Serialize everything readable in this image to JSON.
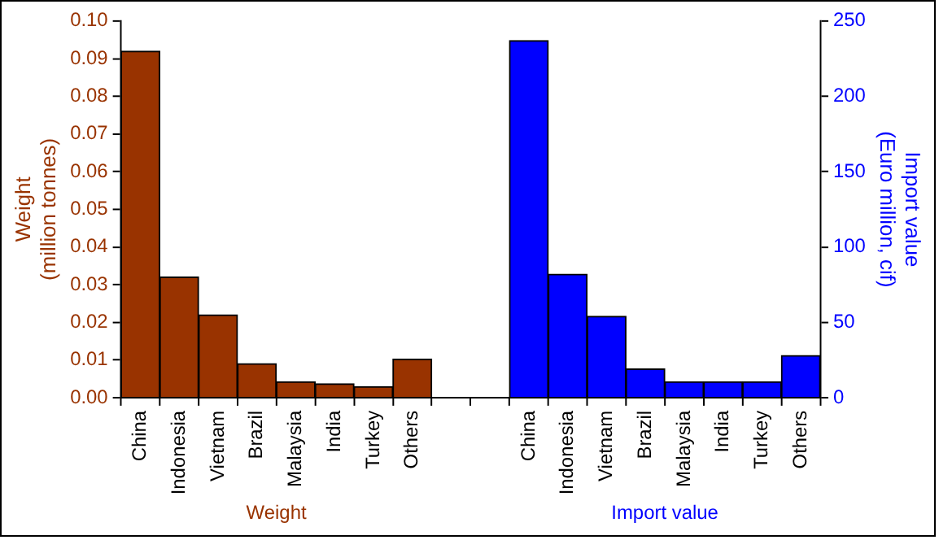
{
  "chart_data": {
    "type": "bar",
    "categories": [
      "China",
      "Indonesia",
      "Vietnam",
      "Brazil",
      "Malaysia",
      "India",
      "Turkey",
      "Others",
      null,
      null,
      "China",
      "Indonesia",
      "Vietnam",
      "Brazil",
      "Malaysia",
      "India",
      "Turkey",
      "Others"
    ],
    "series": [
      {
        "color": "#993300",
        "values": [
          0.092,
          0.032,
          0.022,
          0.009,
          0.0042,
          0.0037,
          0.0029,
          0.0102,
          null,
          null,
          null,
          null,
          null,
          null,
          null,
          null,
          null,
          null
        ]
      },
      {
        "color": "#0000ff",
        "axis": "y2",
        "values": [
          null,
          null,
          null,
          null,
          null,
          null,
          null,
          null,
          null,
          null,
          237,
          82,
          54,
          19,
          10.5,
          10.5,
          10.5,
          28
        ]
      }
    ],
    "ylabel": "Weight\n(million tonnes)",
    "y2label": "Import value\n(Euro million, cif)",
    "ylim": [
      0,
      0.1
    ],
    "yticks": [
      {
        "value": 0,
        "label": "0.00"
      },
      {
        "value": 0.01,
        "label": "0.01"
      },
      {
        "value": 0.02,
        "label": "0.02"
      },
      {
        "value": 0.03,
        "label": "0.03"
      },
      {
        "value": 0.04,
        "label": "0.04"
      },
      {
        "value": 0.05,
        "label": "0.05"
      },
      {
        "value": 0.06,
        "label": "0.06"
      },
      {
        "value": 0.07,
        "label": "0.07"
      },
      {
        "value": 0.08,
        "label": "0.08"
      },
      {
        "value": 0.09,
        "label": "0.09"
      },
      {
        "value": 0.1,
        "label": "0.10"
      }
    ],
    "y2lim": [
      0,
      250
    ],
    "y2ticks": [
      0,
      50,
      100,
      150,
      200,
      250
    ],
    "annotations": [
      "Weight",
      "Import value"
    ],
    "grid": false,
    "legend": false
  }
}
